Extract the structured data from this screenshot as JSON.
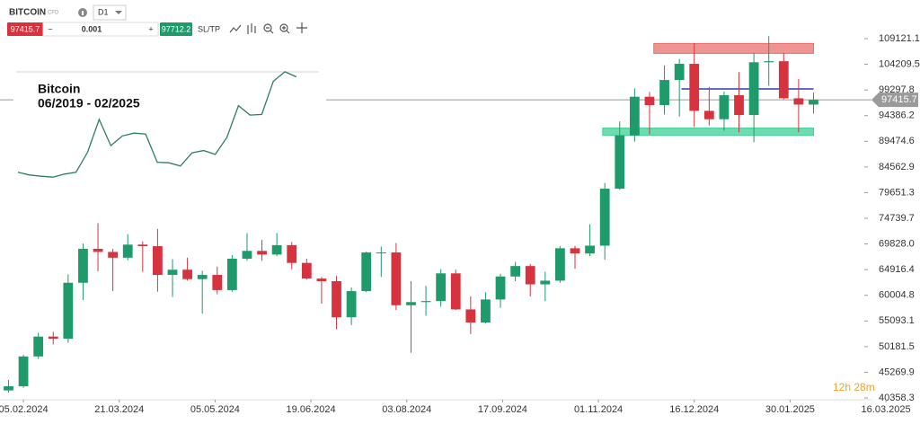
{
  "toolbar": {
    "symbol": "BITCOIN",
    "symbol_type": "CFD",
    "timeframe": "D1",
    "sell_price": "97415.7",
    "volume": "0.001",
    "buy_price": "97712.2",
    "sltp": "SL/TP",
    "minus": "−",
    "plus": "+"
  },
  "timer": "12h 28m",
  "chart_data": [
    {
      "type": "candlestick",
      "up_color": "#1f9a6a",
      "down_color": "#d6333f",
      "x": [
        "29.01.2024",
        "05.02.2024",
        "12.02.2024",
        "19.02.2024",
        "26.02.2024",
        "04.03.2024",
        "11.03.2024",
        "18.03.2024",
        "25.03.2024",
        "01.04.2024",
        "08.04.2024",
        "15.04.2024",
        "22.04.2024",
        "29.04.2024",
        "06.05.2024",
        "13.05.2024",
        "20.05.2024",
        "27.05.2024",
        "03.06.2024",
        "10.06.2024",
        "17.06.2024",
        "24.06.2024",
        "01.07.2024",
        "08.07.2024",
        "15.07.2024",
        "22.07.2024",
        "29.07.2024",
        "05.08.2024",
        "12.08.2024",
        "19.08.2024",
        "26.08.2024",
        "02.09.2024",
        "09.09.2024",
        "16.09.2024",
        "23.09.2024",
        "30.09.2024",
        "07.10.2024",
        "14.10.2024",
        "21.10.2024",
        "28.10.2024",
        "04.11.2024",
        "11.11.2024",
        "18.11.2024",
        "25.11.2024",
        "02.12.2024",
        "09.12.2024",
        "16.12.2024",
        "23.12.2024",
        "30.12.2024",
        "06.01.2025",
        "13.01.2025",
        "20.01.2025",
        "27.01.2025",
        "03.02.2025",
        "10.02.2025"
      ],
      "open": [
        41800,
        42600,
        48300,
        52100,
        51700,
        62400,
        68900,
        68300,
        67200,
        69700,
        69400,
        63900,
        64900,
        63100,
        63900,
        61000,
        67000,
        68500,
        67800,
        69600,
        66200,
        63200,
        62700,
        55800,
        60800,
        68200,
        68200,
        58100,
        58700,
        58900,
        64200,
        57300,
        54800,
        59200,
        63600,
        65600,
        62100,
        62800,
        69000,
        68000,
        69500,
        80400,
        90600,
        98000,
        96400,
        101200,
        104300,
        95300,
        93700,
        98300,
        94500,
        104600,
        104800,
        97700,
        96500
      ],
      "high": [
        43800,
        48600,
        52800,
        53000,
        64000,
        69900,
        73800,
        68900,
        71700,
        70300,
        72700,
        66900,
        67200,
        64700,
        65500,
        67700,
        71900,
        70600,
        71900,
        70200,
        67000,
        63500,
        63700,
        61500,
        68400,
        69300,
        70000,
        62700,
        61800,
        65000,
        64900,
        59800,
        60600,
        64100,
        66400,
        66000,
        64500,
        69400,
        69500,
        73600,
        81500,
        93300,
        99600,
        98900,
        104000,
        105200,
        108300,
        99900,
        99000,
        102700,
        106400,
        109600,
        106400,
        101400,
        98800
      ],
      "low": [
        41400,
        42300,
        47800,
        50600,
        50900,
        59100,
        64600,
        60800,
        66700,
        64500,
        60700,
        59700,
        62800,
        56500,
        60200,
        60700,
        66600,
        66600,
        67500,
        65000,
        63000,
        58400,
        53500,
        54300,
        60600,
        63500,
        57200,
        49000,
        56100,
        57800,
        57200,
        52600,
        54600,
        57600,
        62700,
        59800,
        58900,
        62400,
        65100,
        67500,
        66800,
        80200,
        89400,
        90800,
        94600,
        94200,
        92200,
        92500,
        91500,
        91200,
        89300,
        100100,
        97500,
        91200,
        94800
      ],
      "close": [
        42600,
        48300,
        52100,
        51700,
        62400,
        68900,
        68300,
        67200,
        69700,
        69400,
        63900,
        64900,
        63100,
        63900,
        61000,
        67000,
        68500,
        67800,
        69600,
        66200,
        63200,
        62700,
        55800,
        60800,
        68200,
        68200,
        58100,
        58700,
        58900,
        64200,
        57300,
        54800,
        59200,
        63600,
        65600,
        62100,
        62800,
        69000,
        68000,
        69500,
        80400,
        90600,
        98000,
        96400,
        101200,
        104300,
        95300,
        93700,
        98300,
        94500,
        104600,
        104800,
        97700,
        96500,
        97400
      ],
      "xlim": [
        "25.01.2024",
        "05.03.2025"
      ],
      "xticks": [
        "05.02.2024",
        "21.03.2024",
        "05.05.2024",
        "19.06.2024",
        "03.08.2024",
        "17.09.2024",
        "01.11.2024",
        "16.12.2024",
        "30.01.2025",
        "16.03.2025"
      ],
      "ylim": [
        40013,
        116513
      ],
      "yticks": [
        109121.1,
        104209.5,
        99297.8,
        94386.2,
        89474.6,
        84562.9,
        79651.3,
        74739.7,
        {
          "value": 69828,
          "label": "69828.0"
        },
        64916.4,
        60004.8,
        55093.1,
        50181.5,
        45269.9,
        40358.3
      ],
      "grid": false,
      "last_price": 97415.7,
      "last_price_color": "#9a9a9a",
      "zones": [
        {
          "color": "#e8706f",
          "x": [
            "27.11.2024",
            "10.02.2025"
          ],
          "y": [
            106300,
            108200
          ]
        },
        {
          "color": "#3ecf95",
          "x": [
            "03.11.2024",
            "10.02.2025"
          ],
          "y": [
            90600,
            92000
          ]
        }
      ],
      "levels": [
        {
          "color": "#2b3cc4",
          "x": [
            "10.12.2024",
            "10.02.2025"
          ],
          "value": 99500
        }
      ]
    },
    {
      "type": "line",
      "title": "Bitcoin",
      "subtitle": "06/2019 - 02/2025",
      "color": "#2e7d5b",
      "values": [
        10800,
        8300,
        7200,
        6400,
        9100,
        10800,
        29000,
        58800,
        35000,
        43800,
        46300,
        45500,
        19900,
        19400,
        16500,
        28500,
        30500,
        27000,
        42300,
        71300,
        62700,
        63300,
        93400,
        102000,
        97400
      ],
      "ylim": [
        0,
        115000
      ]
    }
  ]
}
